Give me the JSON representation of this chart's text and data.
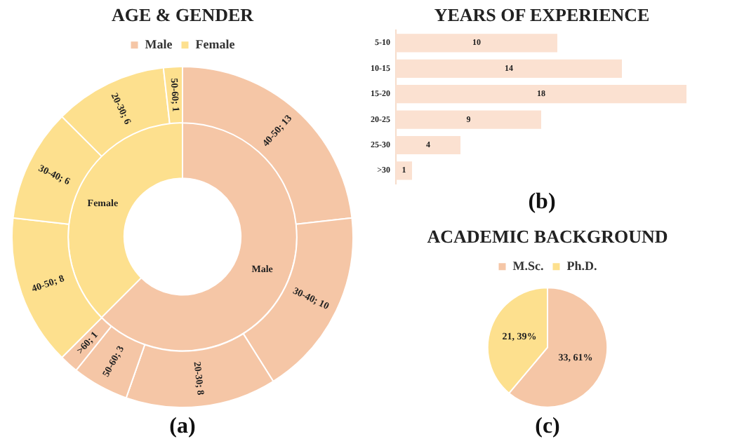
{
  "chart_data": [
    {
      "type": "donut",
      "title": "AGE & GENDER",
      "legend": "top",
      "annotations": [
        "(a)"
      ],
      "categories": [
        "Male",
        "Female"
      ],
      "values": [
        62.5,
        37.5
      ],
      "colors": [
        "#f5c6a6",
        "#fde08e"
      ]
    },
    {
      "type": "donut",
      "categories": [
        null,
        null,
        null,
        null,
        null,
        null,
        null,
        null,
        null
      ],
      "values": [
        13,
        10,
        8,
        3,
        1,
        8,
        6,
        6,
        1
      ],
      "value_labels": [
        "40-50; 13",
        "30-40; 10",
        "20-30; 8",
        "50-60; 3",
        ">60; 1",
        "40-50; 8",
        "30-40; 6",
        "20-30; 6",
        "50-60; 1"
      ],
      "colors": [
        "#f5c6a6",
        "#f5c6a6",
        "#f5c6a6",
        "#f5c6a6",
        "#f5c6a6",
        "#fde08e",
        "#fde08e",
        "#fde08e",
        "#fde08e"
      ]
    },
    {
      "type": "bar",
      "orientation": "horizontal",
      "title": "YEARS OF EXPERIENCE",
      "categories": [
        "5-10",
        "10-15",
        "15-20",
        "20-25",
        "25-30",
        ">30"
      ],
      "values": [
        10,
        14,
        18,
        9,
        4,
        1
      ],
      "color": "#fbe1d1",
      "data_labels": true,
      "tick_labels": "y",
      "annotations": [
        "(b)"
      ]
    },
    {
      "type": "pie",
      "title": "ACADEMIC BACKGROUND",
      "categories": [
        "M.Sc.",
        "Ph.D."
      ],
      "values": [
        33,
        21
      ],
      "colors": [
        "#f5c6a6",
        "#fde08e"
      ],
      "value_labels": [
        "33, 61%",
        "21, 39%"
      ],
      "legend": "top",
      "annotations": [
        "(c)"
      ]
    }
  ]
}
